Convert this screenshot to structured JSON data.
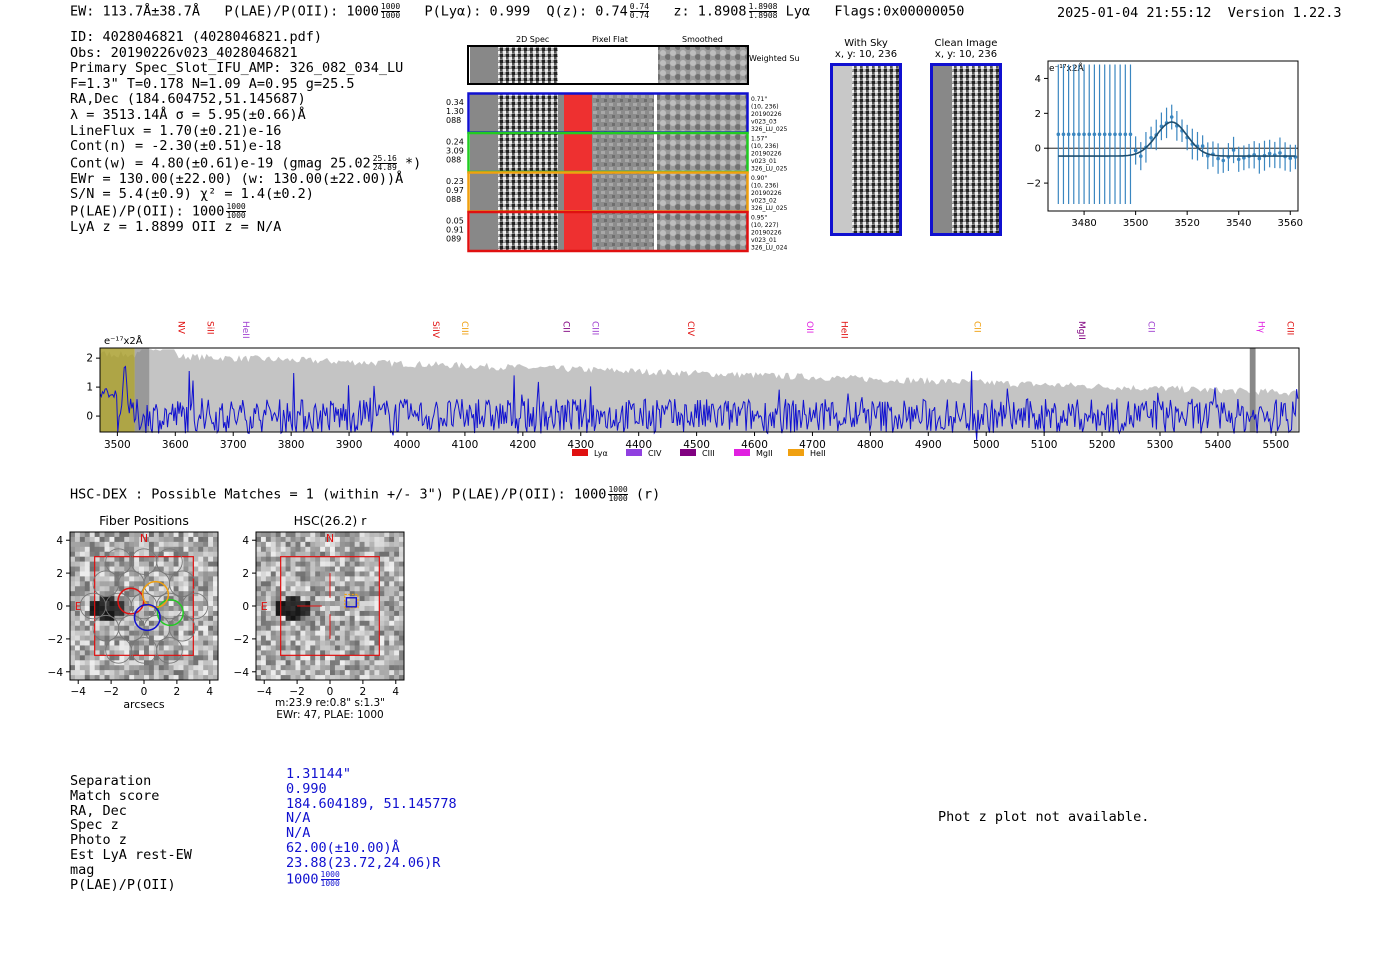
{
  "header": {
    "ew": "EW: 113.7Å±38.7Å",
    "plae_label": "P(LAE)/P(OII): 1000",
    "plae_hi": "1000",
    "plae_lo": "1000",
    "plya": "P(Lyα): 0.999",
    "qz_label": "Q(z): 0.74",
    "qz_hi": "0.74",
    "qz_lo": "0.74",
    "z_label": "z: 1.8908",
    "z_hi": "1.8908",
    "z_lo": "1.8908",
    "z_line": "Lyα",
    "flags": "Flags:0x00000050",
    "datetime": "2025-01-04 21:55:12",
    "version": "Version 1.22.3"
  },
  "info": {
    "id": "ID: 4028046821 (4028046821.pdf)",
    "obs": "Obs: 20190226v023_4028046821",
    "primary": "Primary Spec_Slot_IFU_AMP: 326_082_034_LU",
    "fit": "F=1.3\"  T=0.178  N=1.09  A=0.95  g=25.5",
    "radec": "RA,Dec (184.604752,51.145687)",
    "lambda": "λ = 3513.14Å   σ = 5.95(±0.66)Å",
    "lineflux": "LineFlux = 1.70(±0.21)e-16",
    "contn": "Cont(n) = -2.30(±0.51)e-18",
    "contw": "Cont(w) = 4.80(±0.61)e-19 (gmag 25.02",
    "contw_hi": "25.16",
    "contw_lo": "24.89",
    "contw_end": "*)",
    "ewr": "EWr = 130.00(±22.00) (w: 130.00(±22.00))Å",
    "sn": "S/N = 5.4(±0.9)  χ² = 1.4(±0.2)",
    "plae": "P(LAE)/P(OII): 1000",
    "plae_hi": "1000",
    "plae_lo": "1000",
    "lyaz": "LyA z = 1.8899  OII z = N/A"
  },
  "cutouts": {
    "col_labels": [
      "2D Spec",
      "Pixel Flat",
      "Smoothed"
    ],
    "weighted_sum": "Weighted Sum",
    "rows": [
      {
        "nums": [
          "0.34",
          "1.30",
          "088"
        ],
        "notes": [
          "0.71\"",
          "(10, 236)",
          "20190226",
          "v023_03",
          "326_LU_025"
        ],
        "color": "#1010d0"
      },
      {
        "nums": [
          "0.24",
          "3.09",
          "088"
        ],
        "notes": [
          "1.57\"",
          "(10, 236)",
          "20190226",
          "v023_01",
          "326_LU_025"
        ],
        "color": "#22cc22"
      },
      {
        "nums": [
          "0.23",
          "0.97",
          "088"
        ],
        "notes": [
          "0.90\"",
          "(10, 236)",
          "20190226",
          "v023_02",
          "326_LU_025"
        ],
        "color": "#f0a010"
      },
      {
        "nums": [
          "0.05",
          "0.91",
          "089"
        ],
        "notes": [
          "0.95\"",
          "(10, 227)",
          "20190226",
          "v023_01",
          "326_LU_024"
        ],
        "color": "#e01010"
      }
    ],
    "with_sky_title": "With Sky",
    "with_sky_xy": "x, y: 10, 236",
    "clean_title": "Clean Image",
    "clean_xy": "x, y: 10, 236"
  },
  "zoom_chart": {
    "ylabel": "e⁻¹⁷x2Å",
    "xticks": [
      "3480",
      "3500",
      "3520",
      "3540",
      "3560"
    ],
    "yticks": [
      "4",
      "2",
      "0",
      "−2"
    ]
  },
  "spectrum": {
    "ylabel": "e⁻¹⁷x2Å",
    "xticks": [
      "3500",
      "3600",
      "3700",
      "3800",
      "3900",
      "4000",
      "4100",
      "4200",
      "4300",
      "4400",
      "4500",
      "4600",
      "4700",
      "4800",
      "4900",
      "5000",
      "5100",
      "5200",
      "5300",
      "5400",
      "5500"
    ],
    "yticks": [
      "2",
      "1",
      "0"
    ],
    "lines": [
      {
        "label": "NV",
        "x": 3600,
        "color": "#e01010"
      },
      {
        "label": "SiII",
        "x": 3650,
        "color": "#e01010"
      },
      {
        "label": "HeII",
        "x": 3712,
        "color": "#a040d0"
      },
      {
        "label": "SiIV",
        "x": 4040,
        "color": "#e01010"
      },
      {
        "label": "CIII",
        "x": 4090,
        "color": "#f0a010"
      },
      {
        "label": "CII",
        "x": 4265,
        "color": "#800080"
      },
      {
        "label": "CIII",
        "x": 4315,
        "color": "#a040d0"
      },
      {
        "label": "CIV",
        "x": 4480,
        "color": "#e01010"
      },
      {
        "label": "OII",
        "x": 4685,
        "color": "#e020e0"
      },
      {
        "label": "HeII",
        "x": 4745,
        "color": "#e01010"
      },
      {
        "label": "CII",
        "x": 4975,
        "color": "#f0a010"
      },
      {
        "label": "MgII",
        "x": 5155,
        "color": "#800080"
      },
      {
        "label": "CII",
        "x": 5275,
        "color": "#a040d0"
      },
      {
        "label": "Hγ",
        "x": 5465,
        "color": "#e020e0"
      },
      {
        "label": "CIII",
        "x": 5515,
        "color": "#e01010"
      }
    ],
    "legend": [
      {
        "label": "Lyα",
        "color": "#e01010"
      },
      {
        "label": "CIV",
        "color": "#9040e0"
      },
      {
        "label": "CIII",
        "color": "#800080"
      },
      {
        "label": "MgII",
        "color": "#e020e0"
      },
      {
        "label": "HeII",
        "color": "#f0a010"
      }
    ]
  },
  "hsc": {
    "title_line": "HSC-DEX : Possible Matches = 1 (within +/- 3\")  P(LAE)/P(OII): 1000",
    "title_hi": "1000",
    "title_lo": "1000",
    "title_end": "(r)",
    "fiber_title": "Fiber Positions",
    "hsc_title": "HSC(26.2) r",
    "north": "N",
    "east": "E",
    "xlabel": "arcsecs",
    "ticks": [
      "−4",
      "−2",
      "0",
      "2",
      "4"
    ],
    "yticks": [
      "4",
      "2",
      "0",
      "−2",
      "−4"
    ],
    "cap1": "m:23.9  re:0.8\"  s:1.3\"",
    "cap2": "EWr: 47, PLAE: 1000"
  },
  "match": {
    "labels": [
      "Separation",
      "Match score",
      "RA, Dec",
      "Spec z",
      "Photo z",
      "Est LyA rest-EW",
      "mag",
      "P(LAE)/P(OII)"
    ],
    "values": [
      "1.31144\"",
      "0.990",
      "184.604189, 51.145778",
      "N/A",
      "N/A",
      "62.00(±10.00)Å",
      "23.88(23.72,24.06)R",
      "1000"
    ],
    "plae_hi": "1000",
    "plae_lo": "1000"
  },
  "phot_z_note": "Phot z plot not available."
}
